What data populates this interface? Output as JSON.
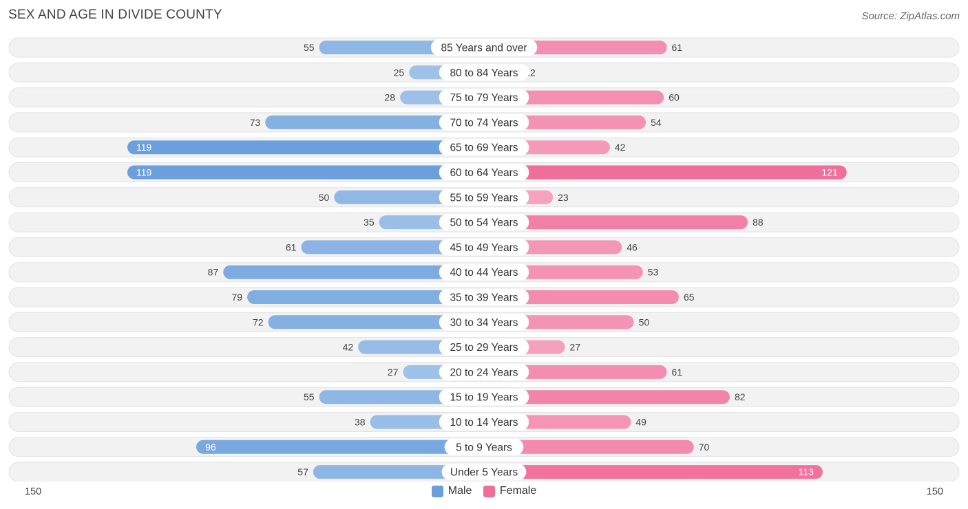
{
  "title": "SEX AND AGE IN DIVIDE COUNTY",
  "source": "Source: ZipAtlas.com",
  "colors": {
    "male": "#6a9fdc",
    "female": "#f06e9a"
  },
  "chart_data": {
    "type": "bar",
    "orientation": "horizontal-diverging",
    "categories": [
      "85 Years and over",
      "80 to 84 Years",
      "75 to 79 Years",
      "70 to 74 Years",
      "65 to 69 Years",
      "60 to 64 Years",
      "55 to 59 Years",
      "50 to 54 Years",
      "45 to 49 Years",
      "40 to 44 Years",
      "35 to 39 Years",
      "30 to 34 Years",
      "25 to 29 Years",
      "20 to 24 Years",
      "15 to 19 Years",
      "10 to 14 Years",
      "5 to 9 Years",
      "Under 5 Years"
    ],
    "series": [
      {
        "name": "Male",
        "values": [
          55,
          25,
          28,
          73,
          119,
          119,
          50,
          35,
          61,
          87,
          79,
          72,
          42,
          27,
          55,
          38,
          96,
          57
        ]
      },
      {
        "name": "Female",
        "values": [
          61,
          12,
          60,
          54,
          42,
          121,
          23,
          88,
          46,
          53,
          65,
          50,
          27,
          61,
          82,
          49,
          70,
          113
        ]
      }
    ],
    "xlim": [
      -150,
      150
    ],
    "axis_labels": {
      "left": "150",
      "right": "150"
    },
    "legend_position": "bottom-center",
    "grid": false
  }
}
